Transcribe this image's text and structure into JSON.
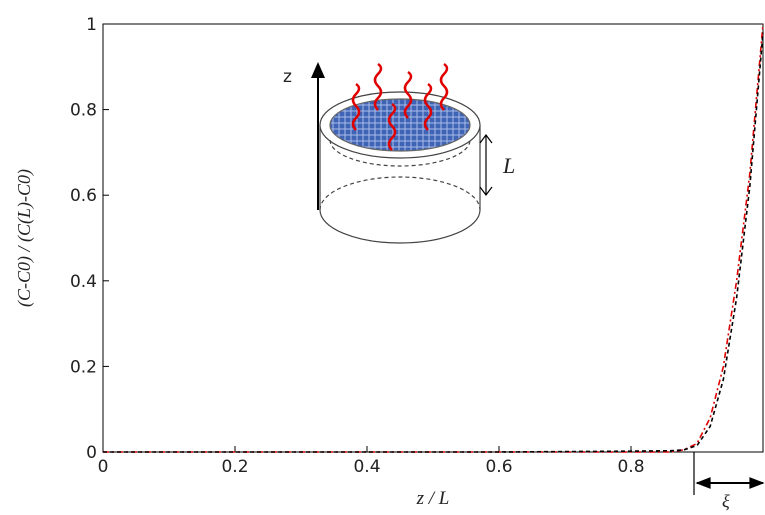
{
  "chart_data": {
    "type": "line",
    "x_label": "z / L",
    "y_label": "(C-C0) / (C(L)-C0)",
    "annotations": {
      "axis_arrow": "z",
      "height": "L",
      "layer": "ξ"
    },
    "x": [
      0,
      0.2,
      0.4,
      0.6,
      0.8,
      0.86,
      0.88,
      0.9,
      0.92,
      0.94,
      0.96,
      0.98,
      1.0
    ],
    "series": [
      {
        "color": "#e00000",
        "values": [
          0,
          0,
          0,
          0,
          0,
          0,
          0.005,
          0.02,
          0.08,
          0.2,
          0.4,
          0.65,
          1.0
        ]
      },
      {
        "color": "#000000",
        "values": [
          0,
          0,
          0,
          0,
          0.002,
          0.003,
          0.005,
          0.015,
          0.06,
          0.17,
          0.36,
          0.62,
          0.98
        ]
      }
    ],
    "xlim": [
      0,
      1
    ],
    "ylim": [
      0,
      1
    ],
    "xticks": [
      0,
      0.2,
      0.4,
      0.6,
      0.8
    ],
    "yticks": [
      0,
      0.2,
      0.4,
      0.6,
      0.8,
      1
    ]
  }
}
